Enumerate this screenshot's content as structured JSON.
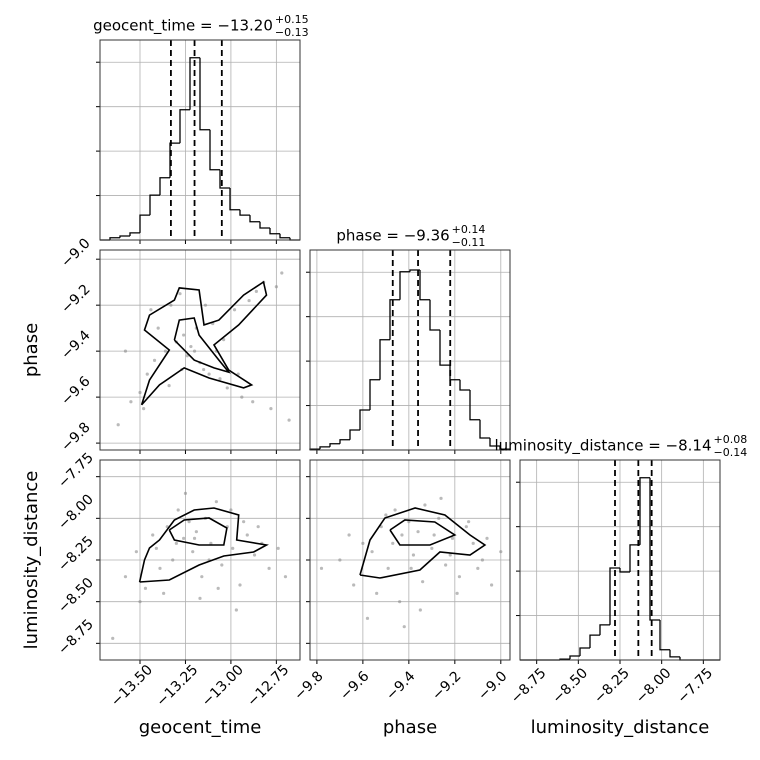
{
  "chart_data": {
    "type": "corner",
    "grid": true,
    "hist_color": "#000000",
    "point_color": "#8c8c8c",
    "contour_color": "#000000",
    "grid_color": "#b0b0b0",
    "hist_ylim": [
      0,
      4.5
    ],
    "hist_yticks": [
      1,
      2,
      3,
      4
    ],
    "parameters": [
      {
        "name": "geocent_time",
        "title": "geocent_time = −13.20",
        "title_upper": "+0.15",
        "title_lower": "−0.13",
        "lim": [
          -13.72,
          -12.62
        ],
        "ticks": [
          {
            "value": -13.5,
            "label": "−13.50"
          },
          {
            "value": -13.25,
            "label": "−13.25"
          },
          {
            "value": -13.0,
            "label": "−13.00"
          },
          {
            "value": -12.75,
            "label": "−12.75"
          }
        ],
        "quantiles": [
          -13.33,
          -13.2,
          -13.05
        ],
        "bins": [
          -13.72,
          -13.665,
          -13.61,
          -13.555,
          -13.5,
          -13.445,
          -13.39,
          -13.335,
          -13.28,
          -13.225,
          -13.17,
          -13.115,
          -13.06,
          -13.005,
          -12.95,
          -12.895,
          -12.84,
          -12.785,
          -12.73,
          -12.675,
          -12.62
        ],
        "counts": [
          0,
          0.05,
          0.09,
          0.16,
          0.56,
          1.01,
          1.4,
          2.18,
          2.93,
          4.1,
          2.48,
          1.58,
          1.17,
          0.68,
          0.56,
          0.41,
          0.27,
          0.14,
          0.05,
          0
        ]
      },
      {
        "name": "phase",
        "title": "phase = −9.36",
        "title_upper": "+0.14",
        "title_lower": "−0.11",
        "lim": [
          -9.83,
          -8.96
        ],
        "ticks": [
          {
            "value": -9.8,
            "label": "−9.8"
          },
          {
            "value": -9.6,
            "label": "−9.6"
          },
          {
            "value": -9.4,
            "label": "−9.4"
          },
          {
            "value": -9.2,
            "label": "−9.2"
          },
          {
            "value": -9.0,
            "label": "−9.0"
          }
        ],
        "quantiles": [
          -9.47,
          -9.36,
          -9.22
        ],
        "bins": [
          -9.83,
          -9.7865,
          -9.743,
          -9.6995,
          -9.656,
          -9.6125,
          -9.569,
          -9.5255,
          -9.482,
          -9.4385,
          -9.395,
          -9.3515,
          -9.308,
          -9.2645,
          -9.221,
          -9.1775,
          -9.134,
          -9.0905,
          -9.047,
          -9.0035,
          -8.96
        ],
        "counts": [
          0.02,
          0.07,
          0.14,
          0.23,
          0.45,
          0.9,
          1.58,
          2.48,
          3.38,
          4.01,
          4.05,
          3.38,
          2.7,
          1.91,
          1.58,
          1.35,
          0.68,
          0.27,
          0.09,
          0.02
        ]
      },
      {
        "name": "luminosity_distance",
        "title": "luminosity_distance = −8.14",
        "title_upper": "+0.08",
        "title_lower": "−0.14",
        "lim": [
          -8.85,
          -7.65
        ],
        "ticks": [
          {
            "value": -8.75,
            "label": "−8.75"
          },
          {
            "value": -8.5,
            "label": "−8.50"
          },
          {
            "value": -8.25,
            "label": "−8.25"
          },
          {
            "value": -8.0,
            "label": "−8.00"
          },
          {
            "value": -7.75,
            "label": "−7.75"
          }
        ],
        "quantiles": [
          -8.28,
          -8.14,
          -8.06
        ],
        "bins": [
          -8.85,
          -8.79,
          -8.73,
          -8.67,
          -8.61,
          -8.55,
          -8.49,
          -8.43,
          -8.37,
          -8.31,
          -8.25,
          -8.19,
          -8.13,
          -8.07,
          -8.01,
          -7.95,
          -7.89,
          -7.83,
          -7.77,
          -7.71,
          -7.65
        ],
        "counts": [
          0,
          0,
          0,
          0,
          0.02,
          0.09,
          0.27,
          0.56,
          0.79,
          2.07,
          1.98,
          2.59,
          4.1,
          0.9,
          0.23,
          0.07,
          0,
          0,
          0,
          0
        ]
      }
    ],
    "pairs": [
      {
        "x_param": 0,
        "y_param": 1,
        "points_x": [
          -13.62,
          -13.55,
          -13.5,
          -13.46,
          -13.42,
          -13.4,
          -13.36,
          -13.33,
          -13.3,
          -13.28,
          -13.26,
          -13.24,
          -13.22,
          -13.2,
          -13.19,
          -13.17,
          -13.15,
          -13.12,
          -13.1,
          -13.06,
          -13.02,
          -12.98,
          -12.94,
          -12.9,
          -12.86,
          -12.82,
          -12.78,
          -12.72,
          -12.68,
          -13.58,
          -13.44,
          -13.34,
          -13.14,
          -13.04,
          -12.96,
          -12.88,
          -13.48,
          -13.27,
          -13.08,
          -12.75
        ],
        "points_y": [
          -9.72,
          -9.62,
          -9.58,
          -9.5,
          -9.44,
          -9.3,
          -9.4,
          -9.2,
          -9.36,
          -9.15,
          -9.33,
          -9.42,
          -9.38,
          -9.4,
          -9.3,
          -9.45,
          -9.48,
          -9.5,
          -9.28,
          -9.52,
          -9.56,
          -9.22,
          -9.6,
          -9.18,
          -9.14,
          -9.1,
          -9.65,
          -9.06,
          -9.7,
          -9.4,
          -9.22,
          -9.55,
          -9.2,
          -9.35,
          -9.5,
          -9.62,
          -9.65,
          -9.48,
          -9.4,
          -9.12
        ],
        "contours": [
          {
            "x": [
              -13.491,
              -13.448,
              -13.339,
              -13.475,
              -13.448,
              -13.311,
              -13.284,
              -13.175,
              -13.148,
              -13.066,
              -12.93,
              -12.821,
              -12.804,
              -12.957,
              -13.093,
              -13.012,
              -12.886,
              -12.93,
              -13.12,
              -13.257,
              -13.393,
              -13.491
            ],
            "y": [
              -9.634,
              -9.526,
              -9.395,
              -9.308,
              -9.243,
              -9.178,
              -9.125,
              -9.134,
              -9.286,
              -9.265,
              -9.156,
              -9.099,
              -9.156,
              -9.286,
              -9.373,
              -9.482,
              -9.547,
              -9.56,
              -9.517,
              -9.473,
              -9.547,
              -9.634
            ]
          },
          {
            "x": [
              -13.311,
              -13.284,
              -13.202,
              -13.175,
              -13.066,
              -13.012,
              -13.093,
              -13.202,
              -13.311
            ],
            "y": [
              -9.352,
              -9.265,
              -9.256,
              -9.33,
              -9.439,
              -9.491,
              -9.473,
              -9.439,
              -9.352
            ]
          }
        ]
      },
      {
        "x_param": 0,
        "y_param": 2,
        "points_x": [
          -13.65,
          -13.58,
          -13.52,
          -13.47,
          -13.43,
          -13.39,
          -13.35,
          -13.32,
          -13.29,
          -13.26,
          -13.23,
          -13.21,
          -13.19,
          -13.16,
          -13.14,
          -13.11,
          -13.08,
          -13.05,
          -13.02,
          -12.99,
          -12.95,
          -12.91,
          -12.87,
          -12.83,
          -12.79,
          -12.74,
          -12.7,
          -13.5,
          -13.37,
          -13.25,
          -13.17,
          -13.0,
          -12.93,
          -13.41,
          -13.12,
          -12.85,
          -13.3,
          -13.2,
          -13.07,
          -12.97
        ],
        "points_y": [
          -8.72,
          -8.35,
          -8.2,
          -8.42,
          -8.1,
          -8.3,
          -8.05,
          -8.25,
          -7.95,
          -8.12,
          -8.02,
          -8.2,
          -8.08,
          -8.35,
          -8.0,
          -8.15,
          -7.9,
          -8.28,
          -8.05,
          -8.18,
          -8.4,
          -8.1,
          -8.22,
          -8.15,
          -8.3,
          -8.18,
          -8.35,
          -8.5,
          -8.45,
          -7.85,
          -8.48,
          -7.95,
          -8.02,
          -8.18,
          -8.25,
          -8.05,
          -8.15,
          -8.12,
          -8.42,
          -8.55
        ],
        "contours": [
          {
            "x": [
              -13.502,
              -13.475,
              -13.448,
              -13.393,
              -13.311,
              -13.202,
              -13.093,
              -12.957,
              -12.968,
              -12.804,
              -12.875,
              -13.039,
              -13.175,
              -13.339,
              -13.502
            ],
            "y": [
              -8.382,
              -8.25,
              -8.178,
              -8.13,
              -8.01,
              -7.95,
              -7.938,
              -7.98,
              -8.13,
              -8.16,
              -8.202,
              -8.226,
              -8.28,
              -8.37,
              -8.382
            ]
          },
          {
            "x": [
              -13.339,
              -13.257,
              -13.12,
              -13.022,
              -13.039,
              -13.175,
              -13.311,
              -13.339
            ],
            "y": [
              -8.07,
              -8.01,
              -7.998,
              -8.058,
              -8.16,
              -8.16,
              -8.13,
              -8.07
            ]
          }
        ]
      },
      {
        "x_param": 1,
        "y_param": 2,
        "points_x": [
          -9.78,
          -9.7,
          -9.64,
          -9.6,
          -9.56,
          -9.52,
          -9.49,
          -9.46,
          -9.43,
          -9.4,
          -9.38,
          -9.36,
          -9.33,
          -9.3,
          -9.27,
          -9.24,
          -9.21,
          -9.18,
          -9.15,
          -9.12,
          -9.08,
          -9.04,
          -9.0,
          -9.66,
          -9.54,
          -9.44,
          -9.34,
          -9.26,
          -9.19,
          -9.1,
          -9.58,
          -9.47,
          -9.39,
          -9.29,
          -9.22,
          -9.14,
          -9.5,
          -9.35,
          -9.06,
          -9.42
        ],
        "points_y": [
          -8.3,
          -8.25,
          -8.4,
          -8.15,
          -8.2,
          -8.05,
          -8.3,
          -7.95,
          -8.1,
          -8.02,
          -8.22,
          -8.08,
          -7.92,
          -8.18,
          -8.0,
          -8.28,
          -8.12,
          -8.35,
          -8.05,
          -8.15,
          -8.25,
          -8.4,
          -8.2,
          -8.1,
          -8.45,
          -8.5,
          -8.38,
          -7.88,
          -8.45,
          -8.3,
          -8.6,
          -8.15,
          -8.3,
          -8.1,
          -8.22,
          -8.02,
          -7.98,
          -8.55,
          -8.12,
          -8.65
        ],
        "contours": [
          {
            "x": [
              -9.6125,
              -9.569,
              -9.504,
              -9.373,
              -9.243,
              -9.134,
              -9.069,
              -9.134,
              -9.265,
              -9.352,
              -9.526,
              -9.6125
            ],
            "y": [
              -8.34,
              -8.13,
              -7.998,
              -7.938,
              -7.98,
              -8.1,
              -8.16,
              -8.22,
              -8.202,
              -8.31,
              -8.358,
              -8.34
            ]
          },
          {
            "x": [
              -9.482,
              -9.417,
              -9.287,
              -9.2,
              -9.308,
              -9.439,
              -9.482
            ],
            "y": [
              -8.07,
              -8.01,
              -8.022,
              -8.1,
              -8.16,
              -8.16,
              -8.07
            ]
          }
        ]
      }
    ]
  }
}
